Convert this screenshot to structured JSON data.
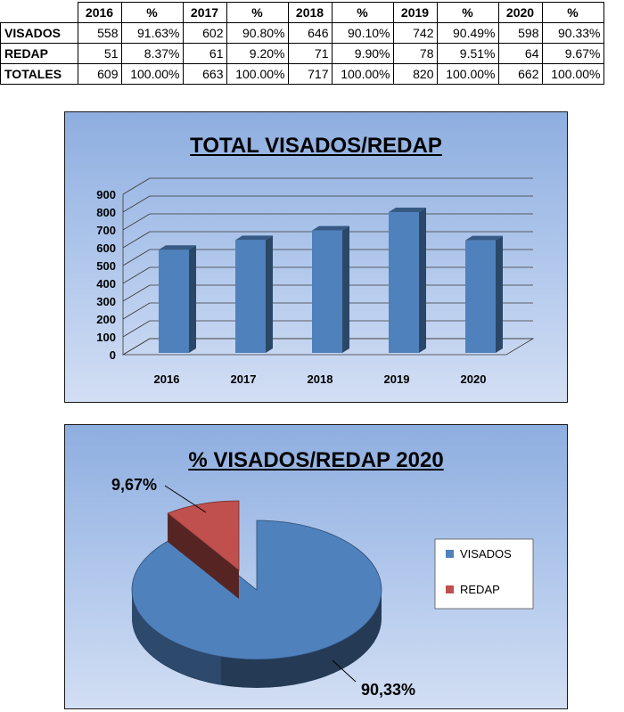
{
  "table": {
    "headers": [
      "",
      "2016",
      "%",
      "2017",
      "%",
      "2018",
      "%",
      "2019",
      "%",
      "2020",
      "%"
    ],
    "rows": [
      {
        "label": "VISADOS",
        "cells": [
          "558",
          "91.63%",
          "602",
          "90.80%",
          "646",
          "90.10%",
          "742",
          "90.49%",
          "598",
          "90.33%"
        ]
      },
      {
        "label": "REDAP",
        "cells": [
          "51",
          "8.37%",
          "61",
          "9.20%",
          "71",
          "9.90%",
          "78",
          "9.51%",
          "64",
          "9.67%"
        ]
      },
      {
        "label": "TOTALES",
        "cells": [
          "609",
          "100.00%",
          "663",
          "100.00%",
          "717",
          "100.00%",
          "820",
          "100.00%",
          "662",
          "100.00%"
        ]
      }
    ]
  },
  "chart_data": [
    {
      "type": "bar",
      "title": "TOTAL VISADOS/REDAP",
      "categories": [
        "2016",
        "2017",
        "2018",
        "2019",
        "2020"
      ],
      "values": [
        609,
        663,
        717,
        820,
        662
      ],
      "ylim": [
        0,
        900
      ],
      "yticks": [
        "0",
        "100",
        "200",
        "300",
        "400",
        "500",
        "600",
        "700",
        "800",
        "900"
      ],
      "grid": true,
      "color": "#4f81bd"
    },
    {
      "type": "pie",
      "title": "% VISADOS/REDAP 2020",
      "labels": [
        "VISADOS",
        "REDAP"
      ],
      "values": [
        90.33,
        9.67
      ],
      "data_labels": [
        "90,33%",
        "9,67%"
      ],
      "colors": [
        "#4f81bd",
        "#c0504d"
      ],
      "legend": "right"
    }
  ]
}
